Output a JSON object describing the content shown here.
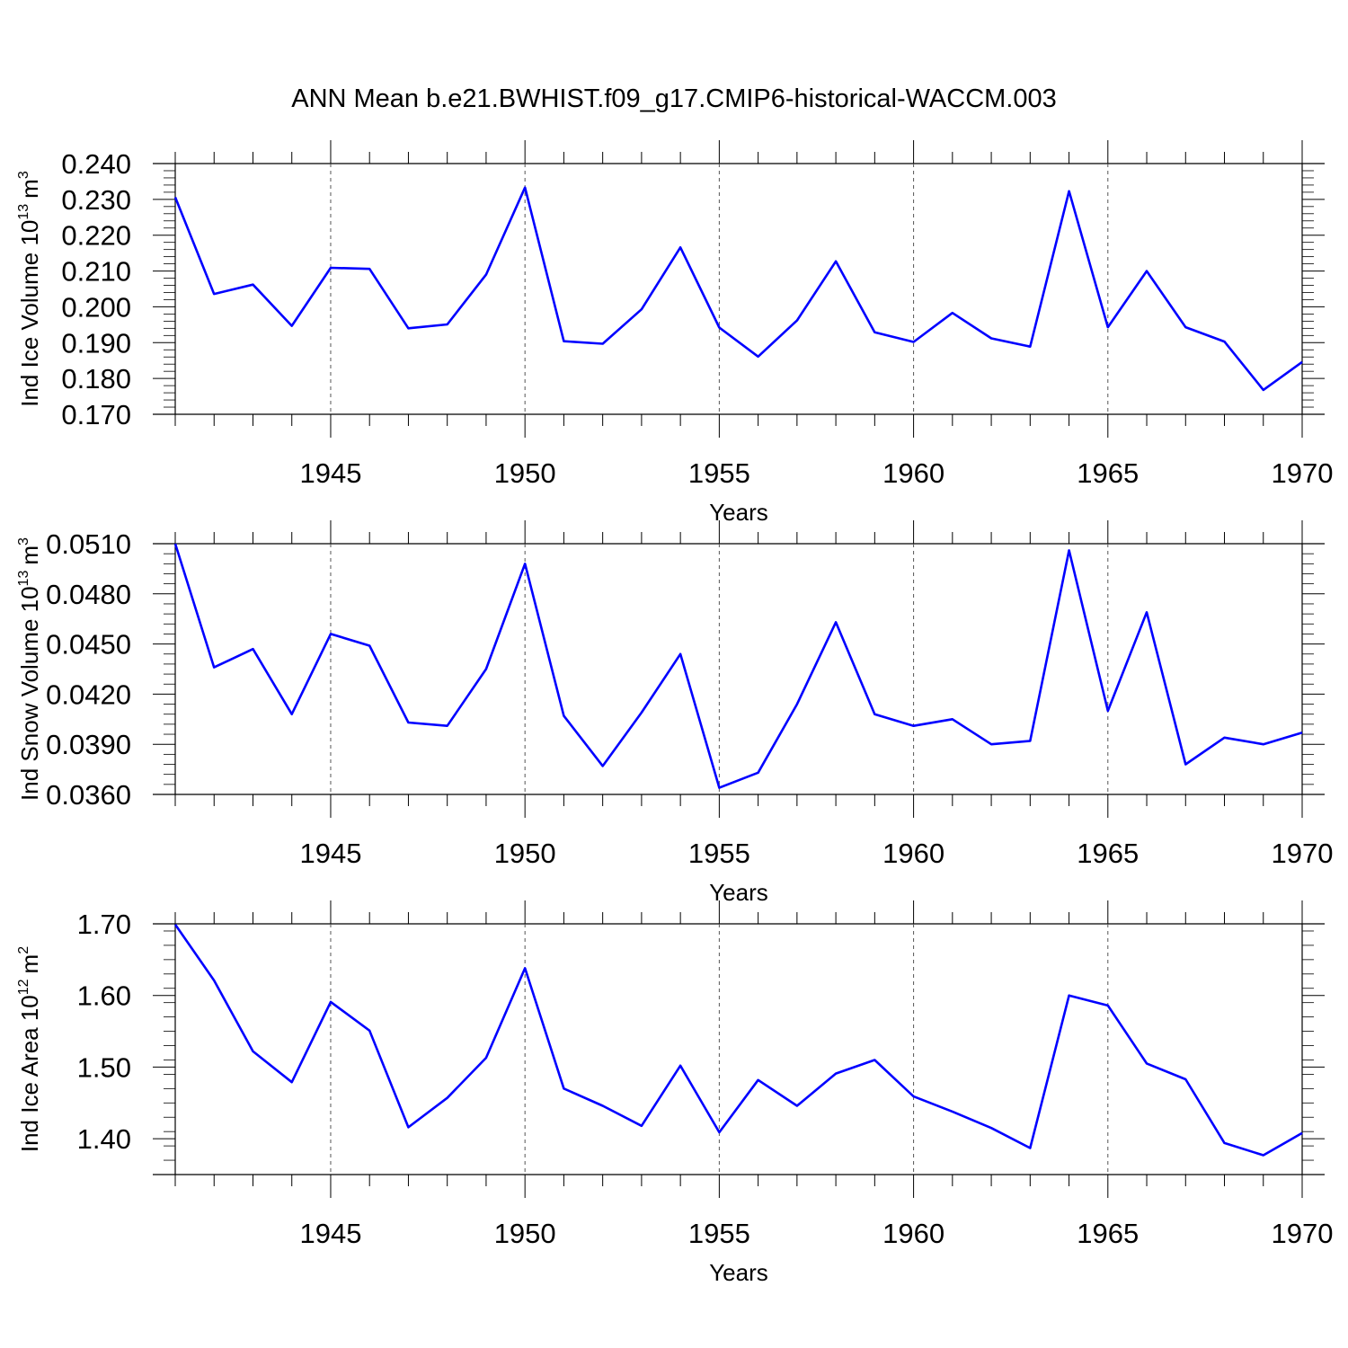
{
  "title": "ANN Mean b.e21.BWHIST.f09_g17.CMIP6-historical-WACCM.003",
  "chart_data": [
    {
      "type": "line",
      "ylabel": {
        "main": "Ind Ice Volume 10",
        "sup": "13",
        "unit": "m",
        "unit_sup": "3"
      },
      "xlabel": "Years",
      "xlim": [
        1941,
        1970
      ],
      "ylim": [
        0.17,
        0.24
      ],
      "yticks": [
        "0.170",
        "0.180",
        "0.190",
        "0.200",
        "0.210",
        "0.220",
        "0.230",
        "0.240"
      ],
      "xticks": [
        "1945",
        "1950",
        "1955",
        "1960",
        "1965",
        "1970"
      ],
      "color": "#0000ff",
      "x": [
        1941,
        1942,
        1943,
        1944,
        1945,
        1946,
        1947,
        1948,
        1949,
        1950,
        1951,
        1952,
        1953,
        1954,
        1955,
        1956,
        1957,
        1958,
        1959,
        1960,
        1961,
        1962,
        1963,
        1964,
        1965,
        1966,
        1967,
        1968,
        1969,
        1970
      ],
      "values": [
        0.2306,
        0.2036,
        0.2062,
        0.1947,
        0.2109,
        0.2106,
        0.194,
        0.1951,
        0.209,
        0.2333,
        0.1904,
        0.1897,
        0.1993,
        0.2166,
        0.1942,
        0.1861,
        0.1962,
        0.2127,
        0.1929,
        0.1902,
        0.1983,
        0.1912,
        0.1889,
        0.2323,
        0.1943,
        0.21,
        0.1943,
        0.1903,
        0.1768,
        0.1846
      ]
    },
    {
      "type": "line",
      "ylabel": {
        "main": "Ind Snow Volume 10",
        "sup": "13",
        "unit": "m",
        "unit_sup": "3"
      },
      "xlabel": "Years",
      "xlim": [
        1941,
        1970
      ],
      "ylim": [
        0.036,
        0.051
      ],
      "yticks": [
        "0.0360",
        "0.0390",
        "0.0420",
        "0.0450",
        "0.0480",
        "0.0510"
      ],
      "xticks": [
        "1945",
        "1950",
        "1955",
        "1960",
        "1965",
        "1970"
      ],
      "color": "#0000ff",
      "x": [
        1941,
        1942,
        1943,
        1944,
        1945,
        1946,
        1947,
        1948,
        1949,
        1950,
        1951,
        1952,
        1953,
        1954,
        1955,
        1956,
        1957,
        1958,
        1959,
        1960,
        1961,
        1962,
        1963,
        1964,
        1965,
        1966,
        1967,
        1968,
        1969,
        1970
      ],
      "values": [
        0.051,
        0.0436,
        0.0447,
        0.0408,
        0.0456,
        0.0449,
        0.0403,
        0.0401,
        0.0435,
        0.0498,
        0.0407,
        0.0377,
        0.0409,
        0.0444,
        0.0364,
        0.0373,
        0.0414,
        0.0463,
        0.0408,
        0.0401,
        0.0405,
        0.039,
        0.0392,
        0.0506,
        0.041,
        0.0469,
        0.0378,
        0.0394,
        0.039,
        0.0397
      ]
    },
    {
      "type": "line",
      "ylabel": {
        "main": "Ind Ice Area 10",
        "sup": "12",
        "unit": "m",
        "unit_sup": "2"
      },
      "xlabel": "Years",
      "xlim": [
        1941,
        1970
      ],
      "ylim": [
        1.35,
        1.7
      ],
      "yticks": [
        "1.40",
        "1.50",
        "1.60",
        "1.70"
      ],
      "ytick_values": [
        1.4,
        1.5,
        1.6,
        1.7
      ],
      "xticks": [
        "1945",
        "1950",
        "1955",
        "1960",
        "1965",
        "1970"
      ],
      "color": "#0000ff",
      "x": [
        1941,
        1942,
        1943,
        1944,
        1945,
        1946,
        1947,
        1948,
        1949,
        1950,
        1951,
        1952,
        1953,
        1954,
        1955,
        1956,
        1957,
        1958,
        1959,
        1960,
        1961,
        1962,
        1963,
        1964,
        1965,
        1966,
        1967,
        1968,
        1969,
        1970
      ],
      "values": [
        1.699,
        1.621,
        1.522,
        1.479,
        1.591,
        1.551,
        1.416,
        1.457,
        1.513,
        1.638,
        1.47,
        1.446,
        1.418,
        1.502,
        1.409,
        1.482,
        1.446,
        1.491,
        1.51,
        1.459,
        1.438,
        1.415,
        1.387,
        1.6,
        1.586,
        1.505,
        1.483,
        1.394,
        1.377,
        1.408
      ]
    }
  ]
}
